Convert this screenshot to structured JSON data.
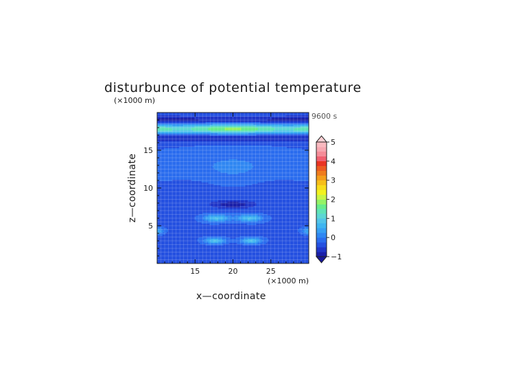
{
  "chart_data": {
    "type": "heatmap",
    "title": "disturbunce of potential temperature",
    "time_label": "9600 s",
    "xlabel": "x—coordinate",
    "ylabel": "z—coordinate",
    "x_unit": "(×1000 m)",
    "y_unit": "(×1000 m)",
    "xlim": [
      10,
      30
    ],
    "ylim": [
      0,
      20
    ],
    "x_ticks": [
      "15",
      "20",
      "25"
    ],
    "x_tick_values": [
      15,
      20,
      25
    ],
    "y_ticks": [
      "5",
      "10",
      "15"
    ],
    "y_tick_values": [
      5,
      10,
      15
    ],
    "grid": true,
    "colorbar": {
      "min": -1,
      "max": 5,
      "step": 0.25,
      "tick_labels": [
        "−1",
        "0",
        "1",
        "2",
        "3",
        "4",
        "5"
      ],
      "tick_values": [
        -1,
        0,
        1,
        2,
        3,
        4,
        5
      ],
      "colors": [
        "#1a1fa8",
        "#1f35c8",
        "#2450e0",
        "#2a6cee",
        "#2f87f2",
        "#37a0f3",
        "#3fb5f0",
        "#52c4e8",
        "#5cd6d4",
        "#5fe3b6",
        "#67ec8c",
        "#94f266",
        "#c8f545",
        "#f2f21e",
        "#f7dc1c",
        "#f6be1a",
        "#f39e1c",
        "#ef7c1e",
        "#ec5a20",
        "#e93322",
        "#f06070",
        "#f58c98",
        "#f7a7b0",
        "#fab9bf"
      ],
      "under_color": "#18189a",
      "over_color": "#fbd0d4"
    },
    "field_description_values": {
      "background": -0.3,
      "top_band_min_z": 19.0,
      "top_band_min_value": -0.9,
      "upper_max_z": 17.8,
      "upper_max_value": 1.6,
      "lower_min_z": 16.6,
      "lower_min_value": -0.8,
      "central_min_x": 20.0,
      "central_min_z": 7.8,
      "central_min_value": -0.9,
      "side_max_z": 6.0,
      "side_max_value": 0.8,
      "low_max_z": 3.0,
      "low_max_value": 0.8
    }
  }
}
